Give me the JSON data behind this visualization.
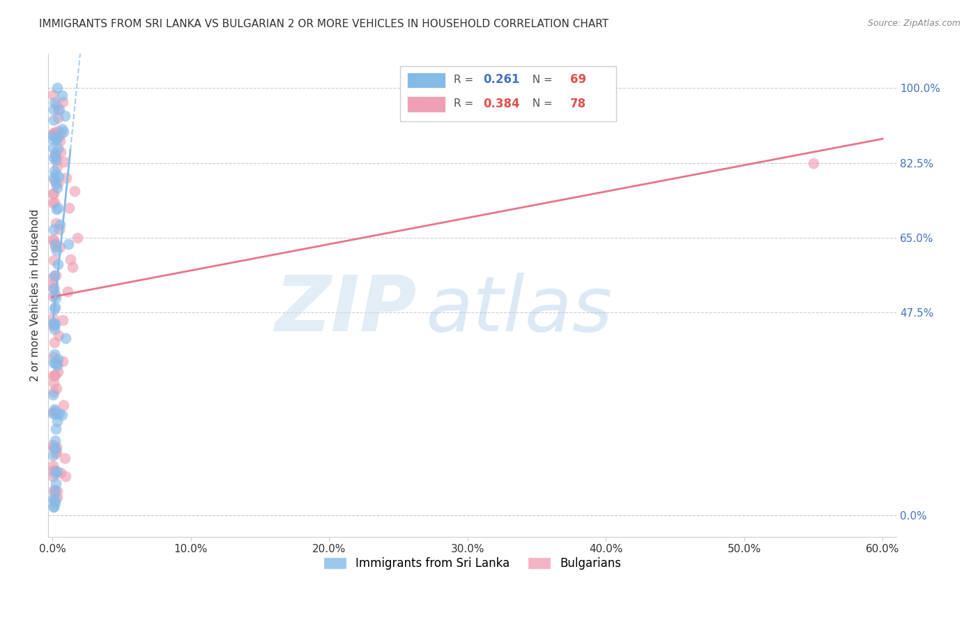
{
  "title": "IMMIGRANTS FROM SRI LANKA VS BULGARIAN 2 OR MORE VEHICLES IN HOUSEHOLD CORRELATION CHART",
  "source": "Source: ZipAtlas.com",
  "ylabel": "2 or more Vehicles in Household",
  "xlim": [
    -0.003,
    0.61
  ],
  "ylim": [
    -0.05,
    1.08
  ],
  "x_tick_vals": [
    0.0,
    0.1,
    0.2,
    0.3,
    0.4,
    0.5,
    0.6
  ],
  "x_tick_labels": [
    "0.0%",
    "10.0%",
    "20.0%",
    "30.0%",
    "40.0%",
    "50.0%",
    "60.0%"
  ],
  "y_tick_vals": [
    0.0,
    0.475,
    0.65,
    0.825,
    1.0
  ],
  "y_tick_labels": [
    "0.0%",
    "47.5%",
    "65.0%",
    "82.5%",
    "100.0%"
  ],
  "sl_color": "#85bae8",
  "bg_color": "#f0a0b5",
  "bg_line_color": "#e8748a",
  "sl_line_color": "#85bae8",
  "R_sl": "0.261",
  "N_sl": "69",
  "R_bg": "0.384",
  "N_bg": "78",
  "label_sl": "Immigrants from Sri Lanka",
  "label_bg": "Bulgarians",
  "watermark_zip": "ZIP",
  "watermark_atlas": "atlas",
  "bg_line_x0": 0.0,
  "bg_line_y0": 0.605,
  "bg_line_x1": 0.6,
  "bg_line_y1": 1.005,
  "sl_line_x0": 0.0,
  "sl_line_y0": 0.605,
  "sl_line_x1": 0.016,
  "sl_line_y1": 0.925
}
